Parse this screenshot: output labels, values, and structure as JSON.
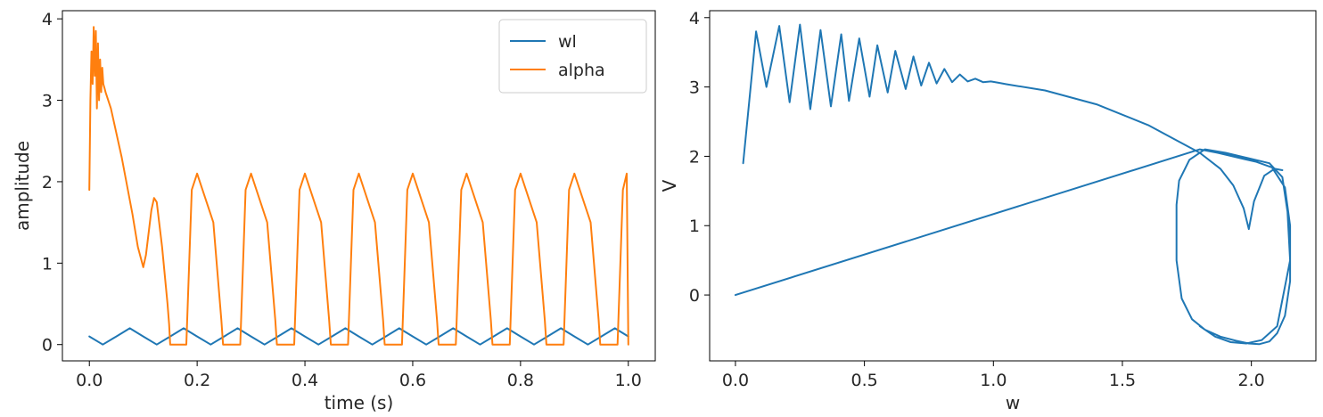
{
  "chart_data": [
    {
      "type": "line",
      "xlabel": "time (s)",
      "ylabel": "amplitude",
      "xlim": [
        -0.05,
        1.05
      ],
      "ylim": [
        -0.2,
        4.1
      ],
      "xticks": [
        0.0,
        0.2,
        0.4,
        0.6,
        0.8,
        1.0
      ],
      "xtick_labels": [
        "0.0",
        "0.2",
        "0.4",
        "0.6",
        "0.8",
        "1.0"
      ],
      "yticks": [
        0,
        1,
        2,
        3,
        4
      ],
      "ytick_labels": [
        "0",
        "1",
        "2",
        "3",
        "4"
      ],
      "grid": false,
      "legend": "top-right",
      "series": [
        {
          "name": "wl",
          "color": "#1f77b4",
          "x": [
            0.0,
            0.025,
            0.05,
            0.075,
            0.1,
            0.125,
            0.15,
            0.175,
            0.2,
            0.225,
            0.25,
            0.275,
            0.3,
            0.325,
            0.35,
            0.375,
            0.4,
            0.425,
            0.45,
            0.475,
            0.5,
            0.525,
            0.55,
            0.575,
            0.6,
            0.625,
            0.65,
            0.675,
            0.7,
            0.725,
            0.75,
            0.775,
            0.8,
            0.825,
            0.85,
            0.875,
            0.9,
            0.925,
            0.95,
            0.975,
            1.0
          ],
          "y": [
            0.1,
            0.0,
            0.1,
            0.2,
            0.1,
            0.0,
            0.1,
            0.2,
            0.1,
            0.0,
            0.1,
            0.2,
            0.1,
            0.0,
            0.1,
            0.2,
            0.1,
            0.0,
            0.1,
            0.2,
            0.1,
            0.0,
            0.1,
            0.2,
            0.1,
            0.0,
            0.1,
            0.2,
            0.1,
            0.0,
            0.1,
            0.2,
            0.1,
            0.0,
            0.1,
            0.2,
            0.1,
            0.0,
            0.1,
            0.2,
            0.1
          ]
        },
        {
          "name": "alpha",
          "color": "#ff7f0e",
          "x": [
            0.0,
            0.002,
            0.004,
            0.006,
            0.008,
            0.01,
            0.012,
            0.014,
            0.016,
            0.018,
            0.02,
            0.022,
            0.024,
            0.026,
            0.028,
            0.03,
            0.04,
            0.06,
            0.08,
            0.09,
            0.1,
            0.105,
            0.115,
            0.12,
            0.125,
            0.135,
            0.145,
            0.148,
            0.15,
            0.18,
            0.19,
            0.2,
            0.23,
            0.245,
            0.248,
            0.28,
            0.29,
            0.3,
            0.33,
            0.345,
            0.348,
            0.38,
            0.39,
            0.4,
            0.43,
            0.445,
            0.448,
            0.48,
            0.49,
            0.5,
            0.53,
            0.545,
            0.548,
            0.58,
            0.59,
            0.6,
            0.63,
            0.645,
            0.648,
            0.68,
            0.69,
            0.7,
            0.73,
            0.745,
            0.748,
            0.78,
            0.79,
            0.8,
            0.83,
            0.845,
            0.848,
            0.88,
            0.89,
            0.9,
            0.93,
            0.945,
            0.948,
            0.98,
            0.99,
            0.997,
            1.0
          ],
          "y": [
            1.9,
            3.0,
            3.6,
            3.2,
            3.9,
            3.3,
            3.85,
            2.9,
            3.7,
            3.0,
            3.5,
            3.1,
            3.4,
            3.2,
            3.15,
            3.1,
            2.9,
            2.3,
            1.6,
            1.2,
            0.95,
            1.1,
            1.65,
            1.8,
            1.75,
            1.2,
            0.5,
            0.25,
            0.0,
            0.0,
            1.9,
            2.1,
            1.5,
            0.3,
            0.0,
            0.0,
            1.9,
            2.1,
            1.5,
            0.3,
            0.0,
            0.0,
            1.9,
            2.1,
            1.5,
            0.3,
            0.0,
            0.0,
            1.9,
            2.1,
            1.5,
            0.3,
            0.0,
            0.0,
            1.9,
            2.1,
            1.5,
            0.3,
            0.0,
            0.0,
            1.9,
            2.1,
            1.5,
            0.3,
            0.0,
            0.0,
            1.9,
            2.1,
            1.5,
            0.3,
            0.0,
            0.0,
            1.9,
            2.1,
            1.5,
            0.3,
            0.0,
            0.0,
            1.9,
            2.1,
            0.0
          ]
        }
      ]
    },
    {
      "type": "line",
      "xlabel": "w",
      "ylabel": "V",
      "xlim": [
        -0.1,
        2.25
      ],
      "ylim": [
        -0.95,
        4.1
      ],
      "xticks": [
        0.0,
        0.5,
        1.0,
        1.5,
        2.0
      ],
      "xtick_labels": [
        "0.0",
        "0.5",
        "1.0",
        "1.5",
        "2.0"
      ],
      "yticks": [
        0,
        1,
        2,
        3,
        4
      ],
      "ytick_labels": [
        "0",
        "1",
        "2",
        "3",
        "4"
      ],
      "grid": false,
      "legend": "none",
      "series": [
        {
          "color": "#1f77b4",
          "x": [
            0.0,
            1.8,
            1.87,
            1.95,
            2.02,
            2.08,
            2.13,
            2.15,
            2.15,
            2.13,
            2.1,
            2.07,
            2.03,
            1.99,
            1.94,
            1.88,
            1.82,
            1.77,
            1.73,
            1.71,
            1.71,
            1.72,
            1.76,
            1.82,
            1.9,
            1.98,
            2.07,
            2.12,
            2.14,
            2.15,
            2.1,
            2.04,
            1.98,
            1.92,
            1.86,
            1.8
          ],
          "y": [
            0.0,
            2.1,
            2.05,
            1.98,
            1.92,
            1.84,
            1.55,
            1.0,
            0.2,
            -0.3,
            -0.55,
            -0.67,
            -0.71,
            -0.7,
            -0.66,
            -0.6,
            -0.5,
            -0.35,
            -0.05,
            0.5,
            1.3,
            1.65,
            1.95,
            2.1,
            2.05,
            1.98,
            1.9,
            1.7,
            1.2,
            0.5,
            -0.45,
            -0.65,
            -0.7,
            -0.68,
            -0.6,
            -0.45
          ]
        },
        {
          "color": "#1f77b4",
          "x": [
            0.03,
            0.08,
            0.12,
            0.17,
            0.21,
            0.25,
            0.29,
            0.33,
            0.37,
            0.41,
            0.44,
            0.48,
            0.52,
            0.55,
            0.59,
            0.62,
            0.66,
            0.69,
            0.72,
            0.75,
            0.78,
            0.81,
            0.84,
            0.87,
            0.9,
            0.93,
            0.96,
            0.99,
            1.02,
            1.05,
            1.2,
            1.4,
            1.6,
            1.7,
            1.8,
            1.88,
            1.93,
            1.97,
            1.99,
            2.01,
            2.05,
            2.09,
            2.12
          ],
          "y": [
            1.9,
            3.8,
            3.0,
            3.88,
            2.78,
            3.9,
            2.68,
            3.82,
            2.72,
            3.76,
            2.8,
            3.7,
            2.86,
            3.6,
            2.92,
            3.52,
            2.97,
            3.44,
            3.02,
            3.35,
            3.05,
            3.26,
            3.07,
            3.18,
            3.08,
            3.12,
            3.07,
            3.08,
            3.06,
            3.04,
            2.95,
            2.75,
            2.45,
            2.25,
            2.05,
            1.82,
            1.58,
            1.25,
            0.95,
            1.35,
            1.72,
            1.82,
            1.8
          ]
        }
      ]
    }
  ]
}
